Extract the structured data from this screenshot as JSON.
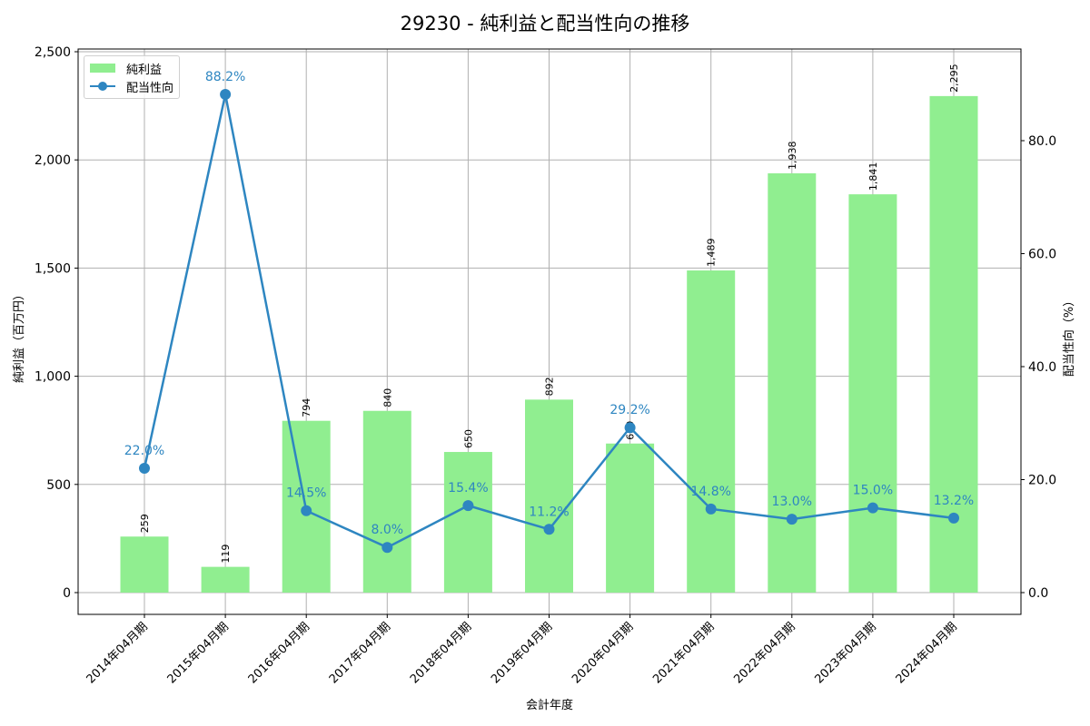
{
  "title": "29230 - 純利益と配当性向の推移",
  "legend": {
    "bar_label": "純利益",
    "line_label": "配当性向"
  },
  "colors": {
    "bar": "#90ee90",
    "line": "#2e86c1",
    "grid": "#b0b0b0"
  },
  "chart_data": {
    "type": "bar+line",
    "title": "29230 - 純利益と配当性向の推移",
    "xlabel": "会計年度",
    "ylabel": "純利益（百万円）",
    "y2label": "配当性向（%）",
    "categories": [
      "2014年04月期",
      "2015年04月期",
      "2016年04月期",
      "2017年04月期",
      "2018年04月期",
      "2019年04月期",
      "2020年04月期",
      "2021年04月期",
      "2022年04月期",
      "2023年04月期",
      "2024年04月期"
    ],
    "series": [
      {
        "name": "純利益",
        "type": "bar",
        "axis": "left",
        "values": [
          259,
          119,
          794,
          840,
          650,
          892,
          689,
          1489,
          1938,
          1841,
          2295
        ],
        "labels": [
          "259",
          "119",
          "794",
          "840",
          "650",
          "892",
          "689",
          "1,489",
          "1,938",
          "1,841",
          "2,295"
        ]
      },
      {
        "name": "配当性向",
        "type": "line",
        "axis": "right",
        "values": [
          22.0,
          88.2,
          14.5,
          8.0,
          15.4,
          11.2,
          29.2,
          14.8,
          13.0,
          15.0,
          13.2
        ],
        "labels": [
          "22.0%",
          "88.2%",
          "14.5%",
          "8.0%",
          "15.4%",
          "11.2%",
          "29.2%",
          "14.8%",
          "13.0%",
          "15.0%",
          "13.2%"
        ]
      }
    ],
    "ylim": [
      -100,
      2610
    ],
    "y2lim": [
      -3.8,
      96.1
    ],
    "yticks": [
      0,
      500,
      1000,
      1500,
      2000,
      2500
    ],
    "yticklabels": [
      "0",
      "500",
      "1,000",
      "1,500",
      "2,000",
      "2,500"
    ],
    "y2ticks": [
      0,
      20,
      40,
      60,
      80
    ],
    "y2ticklabels": [
      "0.0",
      "20.0",
      "40.0",
      "60.0",
      "80.0"
    ],
    "grid": true,
    "legend_position": "upper left"
  }
}
